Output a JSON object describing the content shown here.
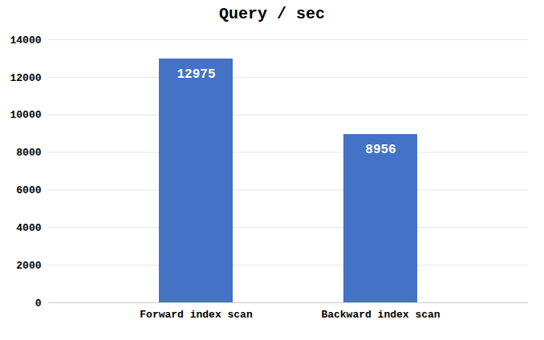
{
  "chart_data": {
    "type": "bar",
    "title": "Query / sec",
    "categories": [
      "Forward index scan",
      "Backward index scan"
    ],
    "values": [
      12975,
      8956
    ],
    "color": "#4472c4",
    "ylim": [
      0,
      14000
    ],
    "yticks": [
      0,
      2000,
      4000,
      6000,
      8000,
      10000,
      12000,
      14000
    ],
    "grid": true,
    "data_labels": true
  }
}
